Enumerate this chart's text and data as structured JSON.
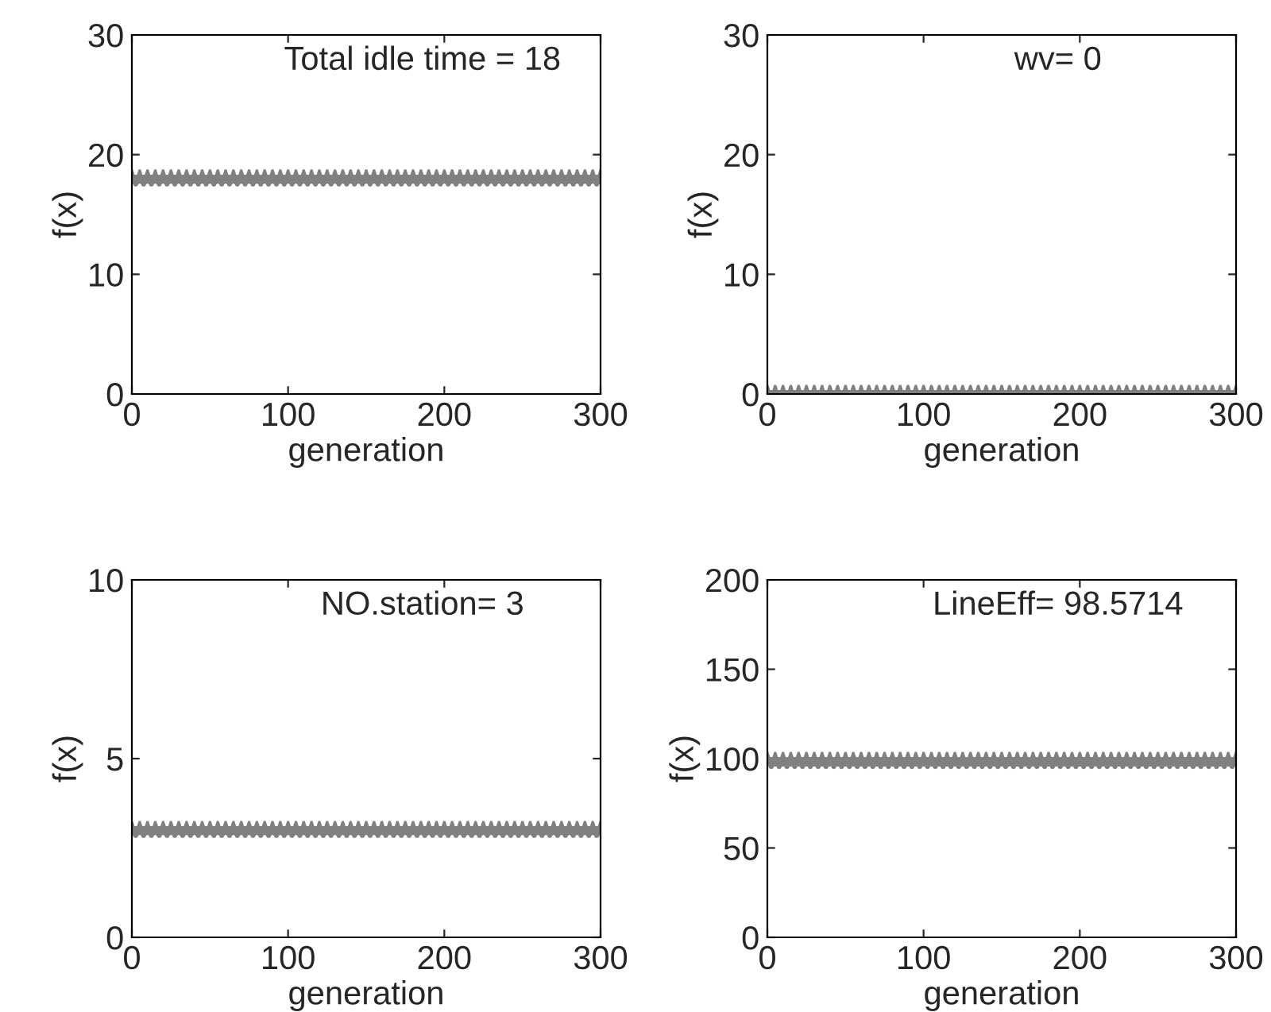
{
  "chart_data": [
    {
      "type": "scatter",
      "xlabel": "generation",
      "ylabel": "f(x)",
      "annotations": [
        "Total idle time = 18"
      ],
      "x": [
        0,
        5,
        10,
        15,
        20,
        25,
        30,
        35,
        40,
        45,
        50,
        55,
        60,
        65,
        70,
        75,
        80,
        85,
        90,
        95,
        100,
        105,
        110,
        115,
        120,
        125,
        130,
        135,
        140,
        145,
        150,
        155,
        160,
        165,
        170,
        175,
        180,
        185,
        190,
        195,
        200,
        205,
        210,
        215,
        220,
        225,
        230,
        235,
        240,
        245,
        250,
        255,
        260,
        265,
        270,
        275,
        280,
        285,
        290,
        295,
        300
      ],
      "series": [
        {
          "color": "#808080",
          "values": [
            18,
            18,
            18,
            18,
            18,
            18,
            18,
            18,
            18,
            18,
            18,
            18,
            18,
            18,
            18,
            18,
            18,
            18,
            18,
            18,
            18,
            18,
            18,
            18,
            18,
            18,
            18,
            18,
            18,
            18,
            18,
            18,
            18,
            18,
            18,
            18,
            18,
            18,
            18,
            18,
            18,
            18,
            18,
            18,
            18,
            18,
            18,
            18,
            18,
            18,
            18,
            18,
            18,
            18,
            18,
            18,
            18,
            18,
            18,
            18,
            18
          ]
        }
      ],
      "xlim": [
        0,
        300
      ],
      "xticks": [
        0,
        100,
        200,
        300
      ],
      "ylim": [
        0,
        30
      ],
      "yticks": [
        0,
        10,
        20,
        30
      ],
      "marker": "star",
      "grid": false,
      "legend": false
    },
    {
      "type": "scatter",
      "xlabel": "generation",
      "ylabel": "f(x)",
      "annotations": [
        "wv= 0"
      ],
      "x": [
        0,
        5,
        10,
        15,
        20,
        25,
        30,
        35,
        40,
        45,
        50,
        55,
        60,
        65,
        70,
        75,
        80,
        85,
        90,
        95,
        100,
        105,
        110,
        115,
        120,
        125,
        130,
        135,
        140,
        145,
        150,
        155,
        160,
        165,
        170,
        175,
        180,
        185,
        190,
        195,
        200,
        205,
        210,
        215,
        220,
        225,
        230,
        235,
        240,
        245,
        250,
        255,
        260,
        265,
        270,
        275,
        280,
        285,
        290,
        295,
        300
      ],
      "series": [
        {
          "color": "#808080",
          "values": [
            0,
            0,
            0,
            0,
            0,
            0,
            0,
            0,
            0,
            0,
            0,
            0,
            0,
            0,
            0,
            0,
            0,
            0,
            0,
            0,
            0,
            0,
            0,
            0,
            0,
            0,
            0,
            0,
            0,
            0,
            0,
            0,
            0,
            0,
            0,
            0,
            0,
            0,
            0,
            0,
            0,
            0,
            0,
            0,
            0,
            0,
            0,
            0,
            0,
            0,
            0,
            0,
            0,
            0,
            0,
            0,
            0,
            0,
            0,
            0,
            0
          ]
        }
      ],
      "xlim": [
        0,
        300
      ],
      "xticks": [
        0,
        100,
        200,
        300
      ],
      "ylim": [
        0,
        30
      ],
      "yticks": [
        0,
        10,
        20,
        30
      ],
      "marker": "star",
      "grid": false,
      "legend": false
    },
    {
      "type": "scatter",
      "xlabel": "generation",
      "ylabel": "f(x)",
      "annotations": [
        "NO.station= 3"
      ],
      "x": [
        0,
        5,
        10,
        15,
        20,
        25,
        30,
        35,
        40,
        45,
        50,
        55,
        60,
        65,
        70,
        75,
        80,
        85,
        90,
        95,
        100,
        105,
        110,
        115,
        120,
        125,
        130,
        135,
        140,
        145,
        150,
        155,
        160,
        165,
        170,
        175,
        180,
        185,
        190,
        195,
        200,
        205,
        210,
        215,
        220,
        225,
        230,
        235,
        240,
        245,
        250,
        255,
        260,
        265,
        270,
        275,
        280,
        285,
        290,
        295,
        300
      ],
      "series": [
        {
          "color": "#808080",
          "values": [
            3,
            3,
            3,
            3,
            3,
            3,
            3,
            3,
            3,
            3,
            3,
            3,
            3,
            3,
            3,
            3,
            3,
            3,
            3,
            3,
            3,
            3,
            3,
            3,
            3,
            3,
            3,
            3,
            3,
            3,
            3,
            3,
            3,
            3,
            3,
            3,
            3,
            3,
            3,
            3,
            3,
            3,
            3,
            3,
            3,
            3,
            3,
            3,
            3,
            3,
            3,
            3,
            3,
            3,
            3,
            3,
            3,
            3,
            3,
            3,
            3
          ]
        }
      ],
      "xlim": [
        0,
        300
      ],
      "xticks": [
        0,
        100,
        200,
        300
      ],
      "ylim": [
        0,
        10
      ],
      "yticks": [
        0,
        5,
        10
      ],
      "marker": "star",
      "grid": false,
      "legend": false
    },
    {
      "type": "scatter",
      "xlabel": "generation",
      "ylabel": "f(x)",
      "annotations": [
        "LineEff= 98.5714"
      ],
      "x": [
        0,
        5,
        10,
        15,
        20,
        25,
        30,
        35,
        40,
        45,
        50,
        55,
        60,
        65,
        70,
        75,
        80,
        85,
        90,
        95,
        100,
        105,
        110,
        115,
        120,
        125,
        130,
        135,
        140,
        145,
        150,
        155,
        160,
        165,
        170,
        175,
        180,
        185,
        190,
        195,
        200,
        205,
        210,
        215,
        220,
        225,
        230,
        235,
        240,
        245,
        250,
        255,
        260,
        265,
        270,
        275,
        280,
        285,
        290,
        295,
        300
      ],
      "series": [
        {
          "color": "#808080",
          "values": [
            98.6,
            98.6,
            98.6,
            98.6,
            98.6,
            98.6,
            98.6,
            98.6,
            98.6,
            98.6,
            98.6,
            98.6,
            98.6,
            98.6,
            98.6,
            98.6,
            98.6,
            98.6,
            98.6,
            98.6,
            98.6,
            98.6,
            98.6,
            98.6,
            98.6,
            98.6,
            98.6,
            98.6,
            98.6,
            98.6,
            98.6,
            98.6,
            98.6,
            98.6,
            98.6,
            98.6,
            98.6,
            98.6,
            98.6,
            98.6,
            98.6,
            98.6,
            98.6,
            98.6,
            98.6,
            98.6,
            98.6,
            98.6,
            98.6,
            98.6,
            98.6,
            98.6,
            98.6,
            98.6,
            98.6,
            98.6,
            98.6,
            98.6,
            98.6,
            98.6,
            98.6
          ]
        }
      ],
      "xlim": [
        0,
        300
      ],
      "xticks": [
        0,
        100,
        200,
        300
      ],
      "ylim": [
        0,
        200
      ],
      "yticks": [
        0,
        50,
        100,
        150,
        200
      ],
      "marker": "star",
      "grid": false,
      "legend": false
    }
  ]
}
